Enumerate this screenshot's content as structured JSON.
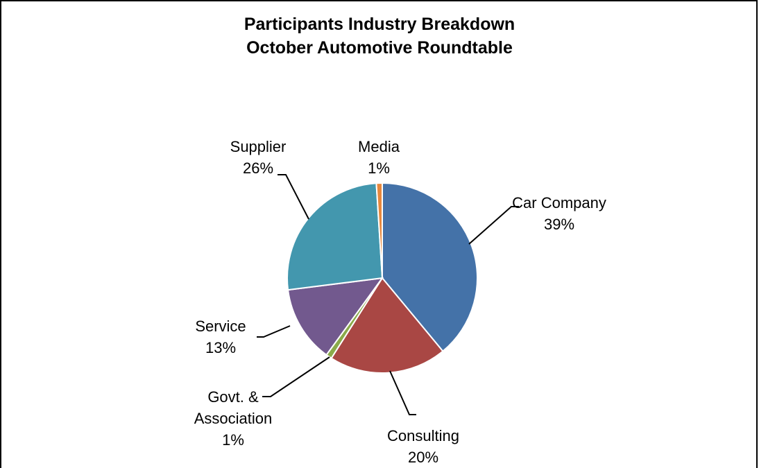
{
  "chart_data": {
    "type": "pie",
    "title": "Participants Industry Breakdown",
    "subtitle": "October Automotive Roundtable",
    "slices": [
      {
        "name": "Car Company",
        "label_lines": [
          "Car Company"
        ],
        "value": 39,
        "value_label": "39%",
        "color": "#4472A8"
      },
      {
        "name": "Consulting",
        "label_lines": [
          "Consulting"
        ],
        "value": 20,
        "value_label": "20%",
        "color": "#A94744"
      },
      {
        "name": "Govt. & Association",
        "label_lines": [
          "Govt. &",
          "Association"
        ],
        "value": 1,
        "value_label": "1%",
        "color": "#8AAA4A"
      },
      {
        "name": "Service",
        "label_lines": [
          "Service"
        ],
        "value": 13,
        "value_label": "13%",
        "color": "#72598E"
      },
      {
        "name": "Supplier",
        "label_lines": [
          "Supplier"
        ],
        "value": 26,
        "value_label": "26%",
        "color": "#4397AE"
      },
      {
        "name": "Media",
        "label_lines": [
          "Media"
        ],
        "value": 1,
        "value_label": "1%",
        "color": "#E6883E"
      }
    ]
  }
}
